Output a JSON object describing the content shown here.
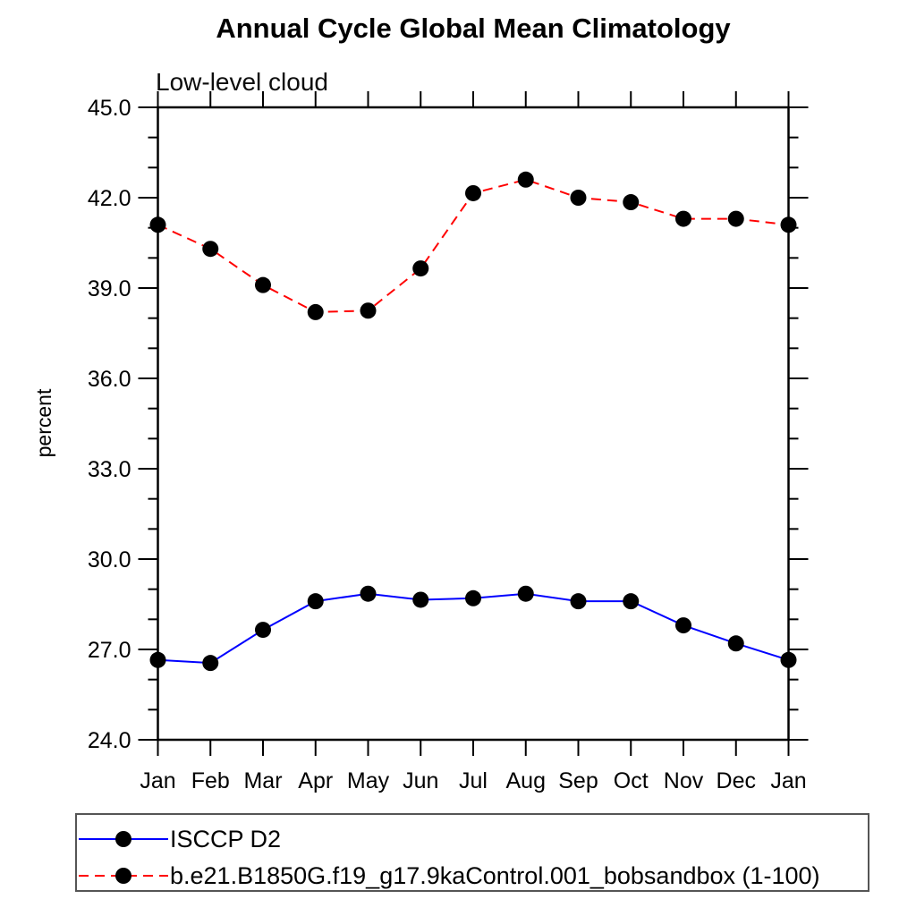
{
  "chart_data": {
    "type": "line",
    "title": "Annual Cycle Global Mean Climatology",
    "subtitle": "Low-level cloud",
    "ylabel": "percent",
    "categories": [
      "Jan",
      "Feb",
      "Mar",
      "Apr",
      "May",
      "Jun",
      "Jul",
      "Aug",
      "Sep",
      "Oct",
      "Nov",
      "Dec",
      "Jan"
    ],
    "ylim": [
      24.0,
      45.0
    ],
    "ytick_major_interval": 3.0,
    "ytick_minor_interval": 1.0,
    "ytick_major_labels": [
      "24.0",
      "27.0",
      "30.0",
      "33.0",
      "36.0",
      "39.0",
      "42.0",
      "45.0"
    ],
    "grid": false,
    "legend_position": "bottom-left-box",
    "series": [
      {
        "name": "ISCCP D2",
        "color": "#0000ff",
        "line_style": "solid",
        "marker": "black-filled-circle",
        "values": [
          26.65,
          26.55,
          27.65,
          28.6,
          28.85,
          28.65,
          28.7,
          28.85,
          28.6,
          28.6,
          27.8,
          27.2,
          26.65
        ]
      },
      {
        "name": "b.e21.B1850G.f19_g17.9kaControl.001_bobsandbox (1-100)",
        "color": "#ff0000",
        "line_style": "dashed",
        "marker": "black-filled-circle",
        "values": [
          41.1,
          40.3,
          39.1,
          38.2,
          38.25,
          39.65,
          42.15,
          42.6,
          42.0,
          41.85,
          41.3,
          41.3,
          41.1
        ]
      }
    ],
    "axis_color": "#000000",
    "marker_color": "#000000"
  }
}
